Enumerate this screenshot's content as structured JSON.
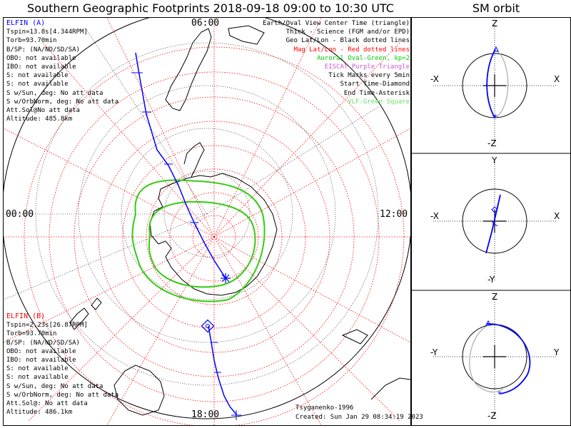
{
  "title": "Southern Geographic Footprints 2018-09-18 09:00 to 10:30 UTC",
  "sm_title": "SM orbit",
  "elfin_a": {
    "name": "ELFIN (A)",
    "color": "#0000ff",
    "lines": [
      "Tspin=13.8s[4.344RPM]",
      "Torb=93.70min",
      "B/SP: (NA/ND/SD/SA)",
      "OBO: not available",
      "IBO: not available",
      "S: not available",
      "S: not available",
      "S w/Sun, deg: No att data",
      "S w/OrbNorm, deg: No att data",
      "Att.Sol@No att data",
      "Altitude: 485.8km"
    ]
  },
  "elfin_b": {
    "name": "ELFIN (B)",
    "color": "#ff0000",
    "lines": [
      "Tspin=2.23s[26.87RPM]",
      "Torb=93.70min",
      "B/SP: (NA/ND/SD/SA)",
      "OBO: not available",
      "IBO: not available",
      "S: not available",
      "S: not available",
      "S w/Sun, deg: No att data",
      "S w/OrbNorm, deg: No att data",
      "Att.Sol@: No att data",
      "Altitude: 486.1km"
    ]
  },
  "legend": [
    {
      "text": "Earth/Oval View Center Time (triangle)",
      "color": "#000000"
    },
    {
      "text": "Thick - Science (FGM and/or EPD)",
      "color": "#000000"
    },
    {
      "text": "Geo Lat/Lon - Black dotted lines",
      "color": "#000000"
    },
    {
      "text": "Mag Lat/Lon - Red dotted lines",
      "color": "#ff0000"
    },
    {
      "text": "Auroral Oval-Green, kp=2",
      "color": "#00cc00"
    },
    {
      "text": "EISCAT-Purple Triangle",
      "color": "#cc55cc"
    },
    {
      "text": "Tick Marks every 5min",
      "color": "#000000"
    },
    {
      "text": "Start Time-Diamond",
      "color": "#000000"
    },
    {
      "text": "End Time-Asterisk",
      "color": "#000000"
    },
    {
      "text": "VLF-Green Square",
      "color": "#66dd66"
    }
  ],
  "clock_labels": {
    "top": "06:00",
    "left": "00:00",
    "right": "12:00",
    "bottom": "18:00"
  },
  "credits": {
    "model": "Tsyganenko-1996",
    "created": "Created: Sun Jan 29 08:34:19 2023"
  },
  "sm_panels": [
    {
      "up": "Z",
      "down": "-Z",
      "left": "-X",
      "right": "X"
    },
    {
      "up": "Y",
      "down": "-Y",
      "left": "-X",
      "right": "X"
    },
    {
      "up": "Z",
      "down": "-Z",
      "left": "-Y",
      "right": "Y"
    }
  ],
  "colors": {
    "orbit_a": "#0000ff",
    "oval": "#33cc11",
    "mag_grid": "#ff0000",
    "geo_grid": "#000000"
  }
}
